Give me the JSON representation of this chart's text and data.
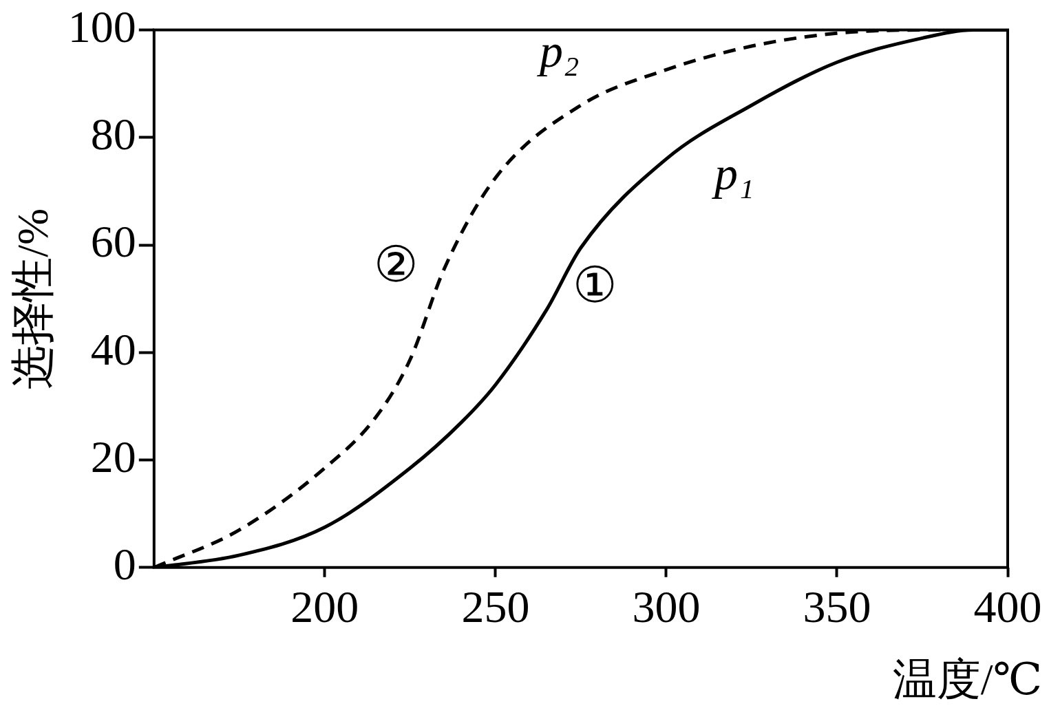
{
  "chart_data": {
    "type": "line",
    "xlabel": "温度/℃",
    "ylabel": "选择性/%",
    "xlim": [
      150,
      400
    ],
    "xticks": [
      200,
      250,
      300,
      350,
      400
    ],
    "ylim": [
      0,
      100
    ],
    "yticks": [
      0,
      20,
      40,
      60,
      80,
      100
    ],
    "grid": false,
    "legend": false,
    "marker": "none",
    "series": [
      {
        "name": "p₁",
        "color": "#000000",
        "line_style": "solid",
        "x": [
          150,
          175,
          200,
          225,
          240,
          250,
          265,
          275,
          300,
          325,
          350,
          375,
          390,
          400
        ],
        "values": [
          0,
          2.3,
          7.5,
          18.5,
          27,
          34,
          48,
          59.5,
          76,
          86,
          94,
          98.5,
          100,
          100
        ]
      },
      {
        "name": "p₂",
        "color": "#000000",
        "line_style": "dashed",
        "x": [
          150,
          175,
          200,
          215,
          225,
          235,
          250,
          275,
          300,
          325,
          350,
          375,
          390
        ],
        "values": [
          0,
          7,
          18.5,
          28,
          38.7,
          55.6,
          72.5,
          86,
          92.6,
          97,
          99.4,
          100,
          100
        ]
      }
    ],
    "annotations": [
      {
        "text": "①",
        "x": 265,
        "y": 48
      },
      {
        "text": "②",
        "x": 235,
        "y": 55.6
      }
    ]
  }
}
